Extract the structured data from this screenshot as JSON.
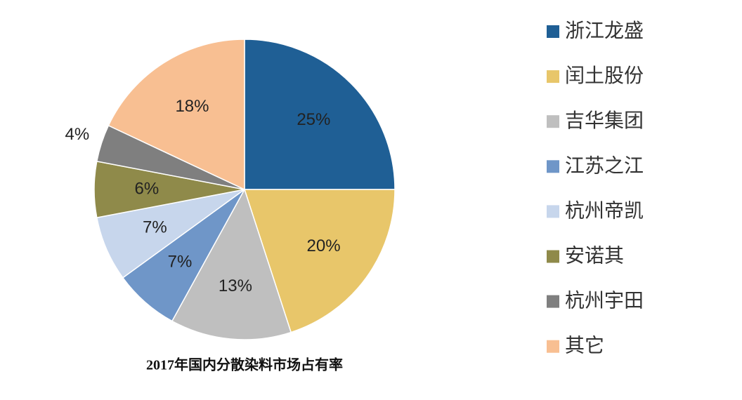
{
  "chart_data": {
    "type": "pie",
    "title": "2017年国内分散染料市场占有率",
    "categories": [
      "浙江龙盛",
      "闰土股份",
      "吉华集团",
      "江苏之江",
      "杭州帝凯",
      "安诺其",
      "杭州宇田",
      "其它"
    ],
    "values": [
      25,
      20,
      13,
      7,
      7,
      6,
      4,
      18
    ],
    "value_labels": [
      "25%",
      "20%",
      "13%",
      "7%",
      "7%",
      "6%",
      "4%",
      "18%"
    ],
    "colors": [
      "#1f5f95",
      "#e8c66a",
      "#bfbfbf",
      "#6f96c8",
      "#c7d6ec",
      "#8f8a4a",
      "#7f7f7f",
      "#f8bf92"
    ],
    "legend": "right"
  }
}
